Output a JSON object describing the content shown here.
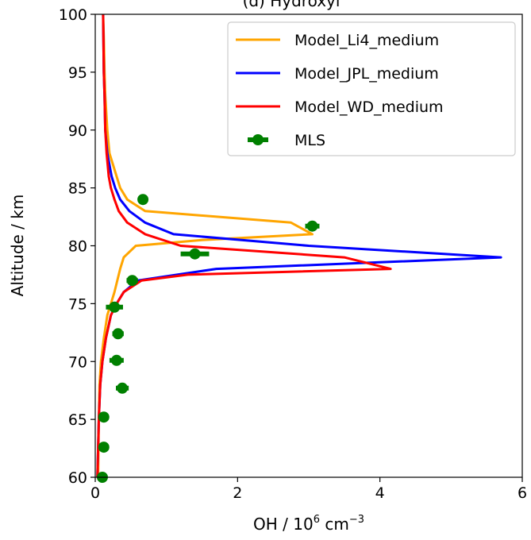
{
  "chart_data": {
    "type": "line",
    "title": "(d) Hydroxyl",
    "xlabel": "OH / 10",
    "xlabel_sup1": "6",
    "xlabel_mid": " cm",
    "xlabel_sup2": "−3",
    "ylabel": "Altitude / km",
    "xlim": [
      0,
      6
    ],
    "ylim": [
      60,
      100
    ],
    "xticks": [
      0,
      2,
      4,
      6
    ],
    "xtick_labels": [
      "0",
      "2",
      "4",
      "6"
    ],
    "yticks": [
      60,
      65,
      70,
      75,
      80,
      85,
      90,
      95,
      100
    ],
    "ytick_labels": [
      "60",
      "65",
      "70",
      "75",
      "80",
      "85",
      "90",
      "95",
      "100"
    ],
    "grid": false,
    "legend_position": "top-right",
    "series": [
      {
        "name": "Model_Li4_medium",
        "color": "#FFA500",
        "kind": "line",
        "x": [
          0.04,
          0.05,
          0.06,
          0.08,
          0.12,
          0.17,
          0.22,
          0.27,
          0.31,
          0.35,
          0.4,
          0.57,
          1.5,
          3.05,
          2.75,
          0.7,
          0.45,
          0.35,
          0.3,
          0.25,
          0.2,
          0.17,
          0.14,
          0.13,
          0.12,
          0.11
        ],
        "y": [
          60,
          65,
          68,
          70,
          72,
          74,
          75,
          76,
          77,
          78,
          79,
          80,
          80.5,
          81,
          82,
          83,
          84,
          85,
          86,
          87,
          88,
          90,
          93,
          95,
          98,
          100
        ]
      },
      {
        "name": "Model_JPL_medium",
        "color": "#0000FF",
        "kind": "line",
        "x": [
          0.03,
          0.05,
          0.07,
          0.1,
          0.15,
          0.22,
          0.3,
          0.4,
          0.6,
          1.7,
          5.7,
          3.0,
          1.1,
          0.7,
          0.48,
          0.35,
          0.28,
          0.23,
          0.2,
          0.17,
          0.14,
          0.13,
          0.12,
          0.11
        ],
        "y": [
          60,
          65,
          68,
          70,
          72,
          74,
          75,
          76,
          77,
          78,
          79,
          80,
          81,
          82,
          83,
          84,
          85,
          86,
          87,
          88,
          90,
          93,
          95,
          100
        ]
      },
      {
        "name": "Model_WD_medium",
        "color": "#FF0000",
        "kind": "line",
        "x": [
          0.03,
          0.05,
          0.07,
          0.1,
          0.15,
          0.22,
          0.3,
          0.4,
          0.65,
          1.3,
          4.15,
          3.5,
          1.2,
          0.7,
          0.45,
          0.33,
          0.27,
          0.22,
          0.19,
          0.16,
          0.14,
          0.13,
          0.12,
          0.11
        ],
        "y": [
          60,
          65,
          68,
          70,
          72,
          74,
          75,
          76,
          77,
          77.5,
          78,
          79,
          80,
          81,
          82,
          83,
          84,
          85,
          86,
          88,
          90,
          93,
          95,
          100
        ]
      },
      {
        "name": "MLS",
        "color": "#008000",
        "kind": "errorbar",
        "x": [
          0.1,
          0.12,
          0.12,
          0.38,
          0.3,
          0.32,
          0.27,
          0.52,
          1.4,
          3.05,
          0.67
        ],
        "xerr": [
          0.05,
          0.05,
          0.06,
          0.09,
          0.1,
          0.08,
          0.12,
          0.08,
          0.2,
          0.1,
          0.0
        ],
        "y": [
          60,
          62.6,
          65.2,
          67.7,
          70.1,
          72.4,
          74.7,
          77,
          79.3,
          81.7,
          84
        ]
      }
    ]
  }
}
